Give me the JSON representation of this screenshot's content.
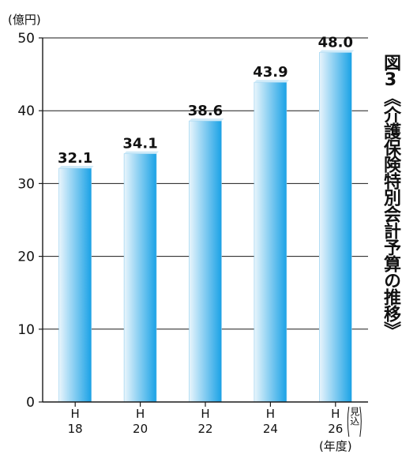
{
  "chart_data": {
    "type": "bar",
    "unit_label": "(億円)",
    "categories": [
      {
        "top": "H",
        "bottom": "18"
      },
      {
        "top": "H",
        "bottom": "20"
      },
      {
        "top": "H",
        "bottom": "22"
      },
      {
        "top": "H",
        "bottom": "24"
      },
      {
        "top": "H",
        "bottom": "26",
        "note": "見込"
      }
    ],
    "values": [
      32.1,
      34.1,
      38.6,
      43.9,
      48.0
    ],
    "value_labels": [
      "32.1",
      "34.1",
      "38.6",
      "43.9",
      "48.0"
    ],
    "xlabel": "(年度)",
    "ylabel": "",
    "ylim": [
      0,
      50
    ],
    "yticks": [
      0,
      10,
      20,
      30,
      40,
      50
    ],
    "grid": true,
    "colors": {
      "bar_light": "#e9f5fc",
      "bar_dark": "#1aa2e6",
      "axis": "#1a1a1a",
      "grid": "#1a1a1a"
    }
  },
  "figure_title": "図3《介護保険特別会計予算の推移》"
}
